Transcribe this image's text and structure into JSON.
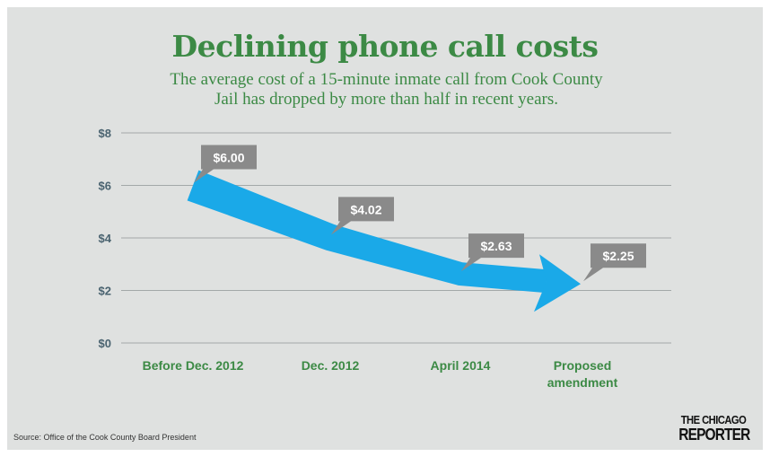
{
  "header": {
    "title": "Declining phone call costs",
    "subtitle": "The average cost of a 15-minute inmate call from Cook County Jail has dropped by more than half in recent years."
  },
  "footer": {
    "source": "Source: Office of the Cook County Board President",
    "logo_top": "THE CHICAGO",
    "logo_bottom": "REPORTER"
  },
  "colors": {
    "title": "#3c8a45",
    "axis_label": "#4a6370",
    "arrow": "#1aa9e8",
    "callout": "#8a8a8a",
    "gridline": "#a3a8a8"
  },
  "chart_data": {
    "type": "line",
    "categories": [
      "Before Dec. 2012",
      "Dec. 2012",
      "April 2014",
      "Proposed amendment"
    ],
    "values": [
      6.0,
      4.02,
      2.63,
      2.25
    ],
    "data_labels": [
      "$6.00",
      "$4.02",
      "$2.63",
      "$2.25"
    ],
    "ylim": [
      0,
      8
    ],
    "yticks": [
      0,
      2,
      4,
      6,
      8
    ],
    "ytick_labels": [
      "$0",
      "$2",
      "$4",
      "$6",
      "$8"
    ],
    "grid": true,
    "legend": "none"
  }
}
